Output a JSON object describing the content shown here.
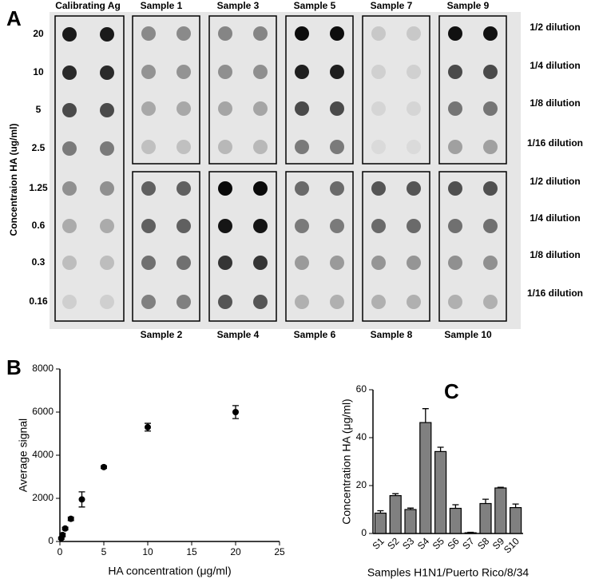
{
  "blot": {
    "panel_label": "A",
    "y_axis_label": "Concentraion HA (ug/ml)",
    "concentrations": [
      "20",
      "10",
      "5",
      "2.5",
      "1.25",
      "0.6",
      "0.3",
      "0.16"
    ],
    "dilutions": [
      "1/2 dilution",
      "1/4 dilution",
      "1/8 dilution",
      "1/16 dilution",
      "1/2 dilution",
      "1/4 dilution",
      "1/8 dilution",
      "1/16 dilution"
    ],
    "calibration": {
      "name": "Calibrating Ag",
      "colors": [
        "#1a1a1a",
        "#2a2a2a",
        "#4a4a4a",
        "#7a7a7a",
        "#909090",
        "#ababab",
        "#bdbdbd",
        "#cfcfcf"
      ]
    },
    "samples": [
      {
        "name": "Sample 1",
        "colors": [
          "#8a8a8a",
          "#939393",
          "#a8a8a8",
          "#c0c0c0"
        ]
      },
      {
        "name": "Sample 2",
        "colors": [
          "#606060",
          "#606060",
          "#707070",
          "#808080"
        ]
      },
      {
        "name": "Sample 3",
        "colors": [
          "#858585",
          "#8f8f8f",
          "#a5a5a5",
          "#b8b8b8"
        ]
      },
      {
        "name": "Sample 4",
        "colors": [
          "#0a0a0a",
          "#151515",
          "#353535",
          "#555555"
        ]
      },
      {
        "name": "Sample 5",
        "colors": [
          "#0d0d0d",
          "#1f1f1f",
          "#4a4a4a",
          "#7a7a7a"
        ]
      },
      {
        "name": "Sample 6",
        "colors": [
          "#6a6a6a",
          "#7a7a7a",
          "#9a9a9a",
          "#b0b0b0"
        ]
      },
      {
        "name": "Sample 7",
        "colors": [
          "#c8c8c8",
          "#d0d0d0",
          "#d5d5d5",
          "#dadada"
        ]
      },
      {
        "name": "Sample 8",
        "colors": [
          "#555555",
          "#6a6a6a",
          "#959595",
          "#b0b0b0"
        ]
      },
      {
        "name": "Sample 9",
        "colors": [
          "#111111",
          "#4a4a4a",
          "#757575",
          "#a0a0a0"
        ]
      },
      {
        "name": "Sample 10",
        "colors": [
          "#505050",
          "#707070",
          "#909090",
          "#b0b0b0"
        ]
      }
    ]
  },
  "chart_data": [
    {
      "type": "scatter",
      "panel_label": "B",
      "x_label": "HA concentration (μg/ml)",
      "y_label": "Average signal",
      "x": [
        0.16,
        0.3,
        0.6,
        1.25,
        2.5,
        5,
        10,
        20
      ],
      "values": [
        150,
        300,
        600,
        1050,
        1950,
        3450,
        5300,
        6000
      ],
      "errors": [
        50,
        80,
        60,
        80,
        350,
        60,
        180,
        300
      ],
      "color": "#000000",
      "xlim": [
        0,
        25
      ],
      "xticks": [
        0,
        5,
        10,
        15,
        20,
        25
      ],
      "ylim": [
        0,
        8000
      ],
      "yticks": [
        0,
        2000,
        4000,
        6000,
        8000
      ]
    },
    {
      "type": "bar",
      "panel_label": "C",
      "x_label": "Samples H1N1/Puerto Rico/8/34",
      "y_label": "Concentration HA (μg/ml)",
      "categories": [
        "S1",
        "S2",
        "S3",
        "S4",
        "S5",
        "S6",
        "S7",
        "S8",
        "S9",
        "S10"
      ],
      "values": [
        8.5,
        15.8,
        10,
        46.3,
        34.2,
        10.5,
        0.3,
        12.5,
        19,
        10.8
      ],
      "errors": [
        1,
        0.8,
        0.6,
        5.8,
        1.8,
        1.5,
        0.2,
        1.8,
        0.3,
        1.5
      ],
      "color": "#808080",
      "ylim": [
        0,
        60
      ],
      "yticks": [
        0,
        20,
        40,
        60
      ]
    }
  ]
}
